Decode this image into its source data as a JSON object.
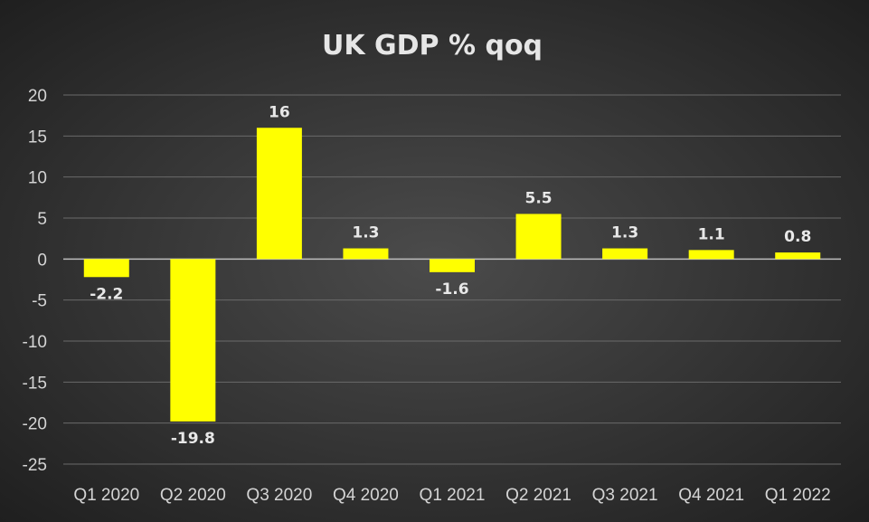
{
  "chart_data": {
    "type": "bar",
    "title": "UK GDP % qoq",
    "categories": [
      "Q1 2020",
      "Q2 2020",
      "Q3 2020",
      "Q4 2020",
      "Q1 2021",
      "Q2 2021",
      "Q3 2021",
      "Q4 2021",
      "Q1 2022"
    ],
    "values": [
      -2.2,
      -19.8,
      16,
      1.3,
      -1.6,
      5.5,
      1.3,
      1.1,
      0.8
    ],
    "data_labels": [
      "-2.2",
      "-19.8",
      "16",
      "1.3",
      "-1.6",
      "5.5",
      "1.3",
      "1.1",
      "0.8"
    ],
    "ylim": [
      -25,
      20
    ],
    "yticks": [
      20,
      15,
      10,
      5,
      0,
      -5,
      -10,
      -15,
      -20,
      -25
    ],
    "xlabel": "",
    "ylabel": "",
    "grid": true,
    "colors": {
      "bar": "#ffff00",
      "grid": "#6a6a6a",
      "zero_line": "#bdbdbd"
    }
  }
}
